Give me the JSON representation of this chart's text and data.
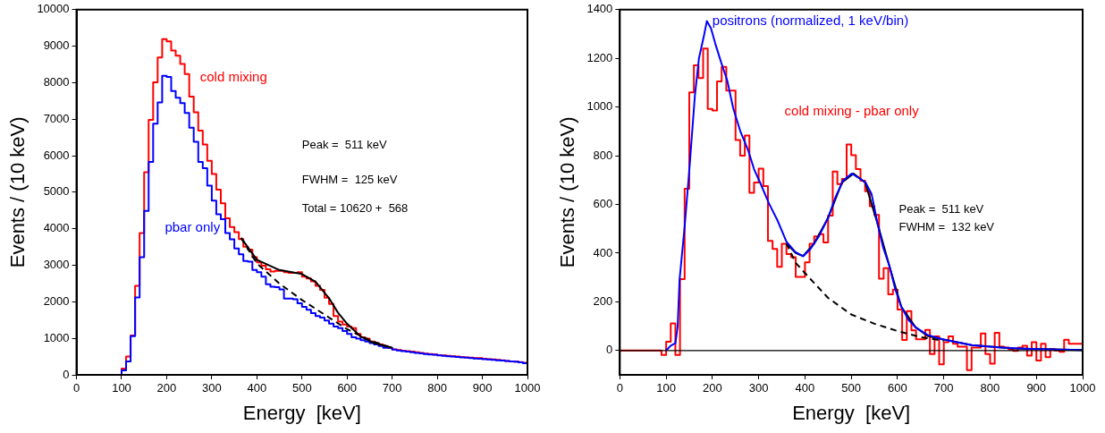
{
  "chart_data": [
    {
      "type": "histogram",
      "xlabel": "Energy  [keV]",
      "ylabel": "Events / (10 keV)",
      "bins": [
        0,
        10,
        20,
        30,
        40,
        50,
        60,
        70,
        80,
        90,
        100,
        110,
        120,
        130,
        140,
        150,
        160,
        170,
        180,
        190,
        200,
        210,
        220,
        230,
        240,
        250,
        260,
        270,
        280,
        290,
        300,
        310,
        320,
        330,
        340,
        350,
        360,
        370,
        380,
        390,
        400,
        410,
        420,
        430,
        440,
        450,
        460,
        470,
        480,
        490,
        500,
        510,
        520,
        530,
        540,
        550,
        560,
        570,
        580,
        590,
        600,
        610,
        620,
        630,
        640,
        650,
        660,
        670,
        680,
        690,
        700,
        710,
        720,
        730,
        740,
        750,
        760,
        770,
        780,
        790,
        800,
        810,
        820,
        830,
        840,
        850,
        860,
        870,
        880,
        890,
        900,
        910,
        920,
        930,
        940,
        950,
        960,
        970,
        980,
        990,
        1000
      ],
      "xlim": [
        0,
        1000
      ],
      "xticks": [
        0,
        100,
        200,
        300,
        400,
        500,
        600,
        700,
        800,
        900,
        1000
      ],
      "ylim": [
        0,
        10000
      ],
      "yticks": [
        0,
        1000,
        2000,
        3000,
        4000,
        5000,
        6000,
        7000,
        8000,
        9000,
        10000
      ],
      "series": [
        {
          "name": "cold mixing",
          "color": "#ff0000",
          "values": [
            0,
            0,
            0,
            0,
            0,
            0,
            0,
            0,
            0,
            0,
            170,
            500,
            1080,
            2440,
            3880,
            5550,
            6980,
            8010,
            8690,
            9190,
            9130,
            8880,
            8740,
            8510,
            8240,
            7620,
            7190,
            6690,
            6310,
            5860,
            5500,
            5070,
            4700,
            4290,
            4050,
            3910,
            3720,
            3510,
            3430,
            3220,
            3080,
            2990,
            2890,
            2830,
            2850,
            2850,
            2810,
            2790,
            2790,
            2810,
            2690,
            2640,
            2560,
            2440,
            2330,
            2110,
            1940,
            1610,
            1460,
            1380,
            1320,
            1280,
            1120,
            1030,
            990,
            910,
            870,
            830,
            790,
            740,
            700,
            680,
            660,
            650,
            640,
            620,
            600,
            580,
            570,
            560,
            540,
            530,
            520,
            510,
            500,
            490,
            480,
            470,
            460,
            460,
            440,
            430,
            420,
            410,
            400,
            380,
            370,
            360,
            350,
            330
          ]
        },
        {
          "name": "pbar only",
          "color": "#0000ff",
          "values": [
            0,
            0,
            0,
            0,
            0,
            0,
            0,
            0,
            0,
            0,
            120,
            370,
            1060,
            2120,
            3220,
            4490,
            5830,
            6880,
            7460,
            8190,
            8160,
            7770,
            7590,
            7440,
            7170,
            6770,
            6380,
            5830,
            5660,
            5180,
            4770,
            4400,
            4260,
            3880,
            3710,
            3460,
            3300,
            3120,
            3100,
            2870,
            2810,
            2690,
            2480,
            2410,
            2400,
            2340,
            2090,
            2090,
            2070,
            1960,
            1860,
            1780,
            1690,
            1610,
            1570,
            1490,
            1400,
            1320,
            1280,
            1200,
            1120,
            1030,
            990,
            950,
            910,
            870,
            830,
            790,
            740,
            740,
            690,
            670,
            650,
            640,
            620,
            600,
            590,
            570,
            560,
            550,
            530,
            520,
            510,
            500,
            490,
            480,
            470,
            460,
            450,
            440,
            430,
            420,
            410,
            400,
            390,
            380,
            370,
            360,
            340,
            320
          ]
        },
        {
          "type": "line",
          "color": "#000000",
          "x": [
            365,
            400,
            450,
            500,
            530,
            560,
            580,
            600,
            630,
            660,
            700
          ],
          "values": [
            3750,
            3150,
            2870,
            2760,
            2550,
            2100,
            1700,
            1400,
            1050,
            870,
            740
          ]
        },
        {
          "type": "line",
          "color": "#000000",
          "line_style": "dashed",
          "x": [
            365,
            400,
            450,
            500,
            550,
            600,
            650,
            700
          ],
          "values": [
            3750,
            3050,
            2500,
            2050,
            1650,
            1250,
            950,
            730
          ]
        }
      ],
      "annotations": [
        "Peak =  511 keV",
        "FWHM =  125 keV",
        "Total = 10620 +  568"
      ]
    },
    {
      "type": "histogram",
      "xlabel": "Energy  [keV]",
      "ylabel": "Events / (10 keV)",
      "bins": [
        0,
        10,
        20,
        30,
        40,
        50,
        60,
        70,
        80,
        90,
        100,
        110,
        120,
        130,
        140,
        150,
        160,
        170,
        180,
        190,
        200,
        210,
        220,
        230,
        240,
        250,
        260,
        270,
        280,
        290,
        300,
        310,
        320,
        330,
        340,
        350,
        360,
        370,
        380,
        390,
        400,
        410,
        420,
        430,
        440,
        450,
        460,
        470,
        480,
        490,
        500,
        510,
        520,
        530,
        540,
        550,
        560,
        570,
        580,
        590,
        600,
        610,
        620,
        630,
        640,
        650,
        660,
        670,
        680,
        690,
        700,
        710,
        720,
        730,
        740,
        750,
        760,
        770,
        780,
        790,
        800,
        810,
        820,
        830,
        840,
        850,
        860,
        870,
        880,
        890,
        900,
        910,
        920,
        930,
        940,
        950,
        960,
        970,
        980,
        990,
        1000
      ],
      "xlim": [
        0,
        1000
      ],
      "xticks": [
        0,
        100,
        200,
        300,
        400,
        500,
        600,
        700,
        800,
        900,
        1000
      ],
      "ylim": [
        -100,
        1400
      ],
      "yticks": [
        0,
        200,
        400,
        600,
        800,
        1000,
        1200,
        1400
      ],
      "series": [
        {
          "name": "cold mixing - pbar only",
          "color": "#ff0000",
          "values": [
            0,
            0,
            0,
            0,
            0,
            0,
            0,
            0,
            0,
            -18,
            36,
            111,
            -18,
            293,
            664,
            1060,
            1171,
            1119,
            1240,
            992,
            986,
            1105,
            1165,
            1068,
            1068,
            865,
            800,
            883,
            648,
            690,
            747,
            675,
            450,
            417,
            344,
            438,
            396,
            383,
            302,
            302,
            362,
            438,
            469,
            478,
            444,
            554,
            735,
            684,
            705,
            846,
            802,
            745,
            697,
            654,
            593,
            557,
            295,
            338,
            231,
            250,
            168,
            43,
            162,
            83,
            46,
            46,
            85,
            -15,
            58,
            -57,
            34,
            58,
            28,
            16,
            16,
            -81,
            12,
            12,
            70,
            -15,
            -54,
            73,
            16,
            12,
            4,
            -2,
            12,
            19,
            -21,
            34,
            -41,
            28,
            -27,
            6,
            0,
            -5,
            44,
            28,
            28,
            28
          ]
        },
        {
          "type": "line",
          "color": "#000000",
          "x": [
            360,
            380,
            396,
            420,
            450,
            480,
            505,
            530,
            557,
            582,
            608,
            639,
            665,
            700,
            760,
            850,
            1000
          ],
          "values": [
            440,
            400,
            388,
            440,
            545,
            690,
            727,
            690,
            520,
            350,
            180,
            95,
            60,
            45,
            22,
            8,
            2
          ]
        },
        {
          "type": "line",
          "color": "#000000",
          "line_style": "dashed",
          "x": [
            360,
            380,
            400,
            450,
            500,
            550,
            600,
            650,
            700
          ],
          "values": [
            440,
            360,
            318,
            216,
            148,
            110,
            80,
            55,
            40
          ]
        },
        {
          "name": "positrons (normalized, 1 keV/bin)",
          "type": "line",
          "color": "#0000ff",
          "x": [
            100,
            110,
            120,
            125,
            129,
            140,
            151,
            162,
            171,
            181,
            188,
            197,
            206,
            219,
            232,
            245,
            261,
            277,
            290,
            303,
            322,
            341,
            360,
            379,
            396,
            412,
            431,
            450,
            466,
            482,
            501,
            521,
            531,
            544,
            557,
            569,
            582,
            595,
            608,
            624,
            639,
            665,
            697,
            760,
            824,
            888,
            952,
            1000
          ],
          "values": [
            0,
            20,
            30,
            100,
            290,
            508,
            763,
            1043,
            1201,
            1286,
            1353,
            1323,
            1262,
            1183,
            1110,
            995,
            897,
            824,
            745,
            690,
            605,
            533,
            447,
            405,
            387,
            417,
            472,
            545,
            630,
            697,
            727,
            703,
            690,
            642,
            520,
            423,
            350,
            253,
            180,
            125,
            95,
            64,
            46,
            22,
            12,
            7,
            4,
            2
          ]
        }
      ],
      "ref_lines": [
        {
          "axis": "y",
          "value": 0,
          "color": "#000000"
        }
      ],
      "annotations": [
        "Peak =  511 keV",
        "FWHM =  132 keV"
      ]
    }
  ]
}
